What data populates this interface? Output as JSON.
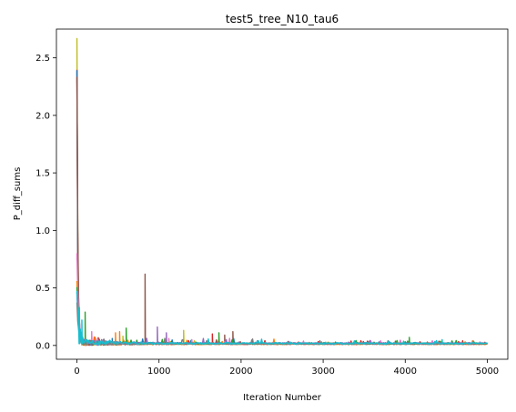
{
  "chart_data": {
    "type": "line",
    "title": "test5_tree_N10_tau6",
    "xlabel": "Iteration Number",
    "ylabel": "P_diff_sums",
    "xlim": [
      -250,
      5250
    ],
    "ylim": [
      -0.12,
      2.75
    ],
    "xticks": [
      0,
      1000,
      2000,
      3000,
      4000,
      5000
    ],
    "yticks": [
      0.0,
      0.5,
      1.0,
      1.5,
      2.0,
      2.5
    ],
    "xtick_labels": [
      "0",
      "1000",
      "2000",
      "3000",
      "4000",
      "5000"
    ],
    "ytick_labels": [
      "0.0",
      "0.5",
      "1.0",
      "1.5",
      "2.0",
      "2.5"
    ],
    "grid": false,
    "legend": "none",
    "series": [
      {
        "color": "#bcbd22",
        "initial_peak": 2.63,
        "decay": 9,
        "base": 0.012,
        "spikes": [
          [
            1300,
            0.13
          ],
          [
            560,
            0.08
          ]
        ]
      },
      {
        "color": "#d62728",
        "initial_peak": 2.35,
        "decay": 8,
        "base": 0.012,
        "spikes": [
          [
            1650,
            0.1
          ],
          [
            2700,
            0.03
          ],
          [
            4700,
            0.04
          ]
        ]
      },
      {
        "color": "#1f77b4",
        "initial_peak": 2.34,
        "decay": 10,
        "base": 0.013,
        "spikes": [
          [
            430,
            0.06
          ],
          [
            2200,
            0.04
          ]
        ]
      },
      {
        "color": "#8c564b",
        "initial_peak": 2.28,
        "decay": 12,
        "base": 0.012,
        "spikes": [
          [
            830,
            0.62
          ],
          [
            1900,
            0.12
          ],
          [
            1800,
            0.09
          ]
        ]
      },
      {
        "color": "#e377c2",
        "initial_peak": 0.74,
        "decay": 20,
        "base": 0.015,
        "spikes": [
          [
            180,
            0.12
          ],
          [
            1120,
            0.06
          ],
          [
            1400,
            0.05
          ]
        ]
      },
      {
        "color": "#ff7f0e",
        "initial_peak": 0.56,
        "decay": 15,
        "base": 0.012,
        "spikes": [
          [
            470,
            0.11
          ],
          [
            520,
            0.12
          ],
          [
            3200,
            0.02
          ]
        ]
      },
      {
        "color": "#2ca02c",
        "initial_peak": 0.5,
        "decay": 18,
        "base": 0.014,
        "spikes": [
          [
            100,
            0.29
          ],
          [
            600,
            0.15
          ],
          [
            4050,
            0.07
          ],
          [
            1730,
            0.11
          ]
        ]
      },
      {
        "color": "#9467bd",
        "initial_peak": 0.45,
        "decay": 22,
        "base": 0.016,
        "spikes": [
          [
            980,
            0.16
          ],
          [
            1090,
            0.11
          ]
        ]
      },
      {
        "color": "#7f7f7f",
        "initial_peak": 0.36,
        "decay": 16,
        "base": 0.012,
        "spikes": [
          [
            300,
            0.05
          ],
          [
            3500,
            0.02
          ]
        ]
      },
      {
        "color": "#17becf",
        "initial_peak": 0.45,
        "decay": 25,
        "base": 0.016,
        "spikes": [
          [
            30,
            0.33
          ],
          [
            60,
            0.22
          ],
          [
            4450,
            0.05
          ],
          [
            2600,
            0.03
          ]
        ]
      }
    ]
  }
}
